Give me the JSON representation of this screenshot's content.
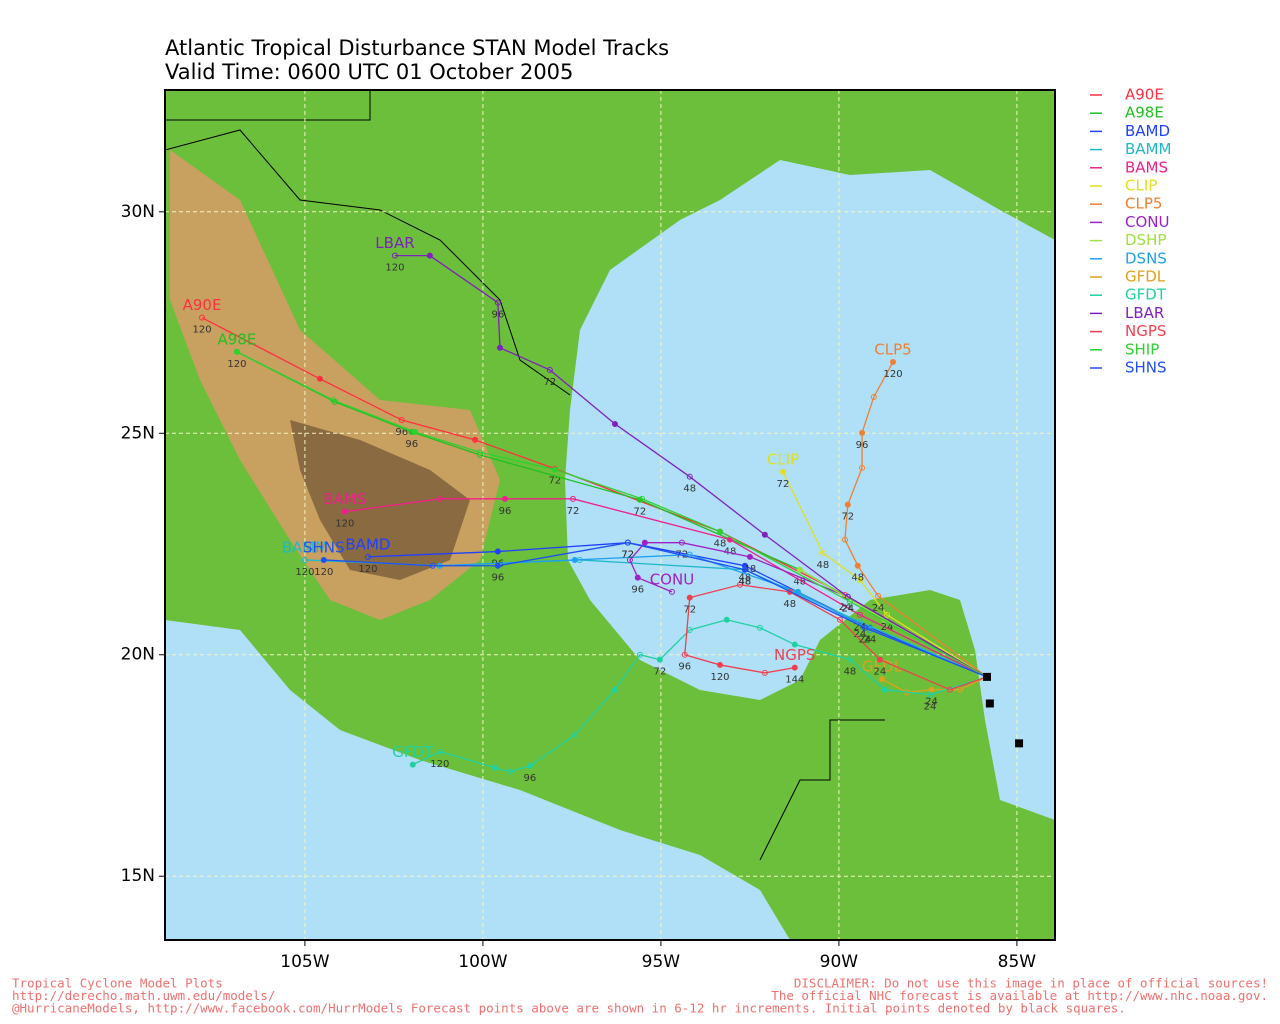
{
  "chart_data": {
    "type": "map_tracks",
    "title": "Atlantic Tropical Disturbance STAN Model Tracks",
    "subtitle": "Valid Time: 0600 UTC 01 October 2005",
    "xlim": [
      -108.93,
      -83.93
    ],
    "ylim": [
      13.56,
      32.75
    ],
    "xticks": [
      {
        "value": -105,
        "label": "105W"
      },
      {
        "value": -100,
        "label": "100W"
      },
      {
        "value": -95,
        "label": "95W"
      },
      {
        "value": -90,
        "label": "90W"
      },
      {
        "value": -85,
        "label": "85W"
      }
    ],
    "yticks": [
      {
        "value": 15,
        "label": "15N"
      },
      {
        "value": 20,
        "label": "20N"
      },
      {
        "value": 25,
        "label": "25N"
      },
      {
        "value": 30,
        "label": "30N"
      }
    ],
    "grid": true,
    "legend": "right",
    "initial_points": {
      "x": [
        -85.84,
        -85.76,
        -84.94
      ],
      "y": [
        19.5,
        18.9,
        18.0
      ]
    },
    "series": [
      {
        "name": "A90E",
        "color": "#ff3040",
        "map_label": true,
        "x": [
          -85.84,
          -89.83,
          -93.34,
          -97.98,
          -100.22,
          -102.28,
          -104.58,
          -107.89
        ],
        "y": [
          19.5,
          21.35,
          22.78,
          24.2,
          24.85,
          25.3,
          26.23,
          27.61
        ],
        "hour_labels": [
          null,
          "24",
          "48",
          "72",
          null,
          "96",
          null,
          "120"
        ]
      },
      {
        "name": "A98E",
        "color": "#20c020",
        "map_label": true,
        "x": [
          -85.84,
          -91.1,
          -95.59,
          -100.08,
          -102.0,
          -104.16,
          -106.91
        ],
        "y": [
          19.5,
          21.92,
          23.5,
          24.51,
          25.03,
          25.71,
          26.84
        ],
        "hour_labels": [
          null,
          "48",
          "72",
          null,
          "96",
          null,
          "120"
        ]
      },
      {
        "name": "BAMD",
        "color": "#2040ff",
        "map_label": true,
        "x": [
          -85.84,
          -89.13,
          -92.64,
          -95.93,
          -99.58,
          -103.23
        ],
        "y": [
          19.5,
          20.61,
          22.01,
          22.53,
          22.33,
          22.21
        ],
        "hour_labels": [
          null,
          "24",
          "48",
          "72",
          "96",
          "120"
        ]
      },
      {
        "name": "BAMM",
        "color": "#20b8c8",
        "map_label": true,
        "x": [
          -85.84,
          -89.41,
          -92.64,
          -97.28,
          -101.21,
          -105.0
        ],
        "y": [
          19.5,
          20.74,
          21.92,
          22.14,
          22.01,
          22.14
        ],
        "hour_labels": [
          null,
          "24",
          "48",
          null,
          null,
          "120"
        ]
      },
      {
        "name": "BAMS",
        "color": "#f0208a",
        "map_label": true,
        "x": [
          -85.84,
          -89.41,
          -93.06,
          -97.47,
          -99.38,
          -101.21,
          -103.88
        ],
        "y": [
          19.5,
          20.9,
          22.6,
          23.52,
          23.52,
          23.52,
          23.23
        ],
        "hour_labels": [
          null,
          "24",
          "48",
          "72",
          "96",
          null,
          "120"
        ]
      },
      {
        "name": "CLIP",
        "color": "#e0e020",
        "map_label": true,
        "x": [
          -85.84,
          -88.65,
          -89.41,
          -90.45,
          -91.57
        ],
        "y": [
          19.5,
          20.9,
          21.69,
          22.3,
          24.13
        ],
        "hour_labels": [
          null,
          "24",
          null,
          "48",
          "72"
        ]
      },
      {
        "name": "CLP5",
        "color": "#f08030",
        "map_label": true,
        "x": [
          -85.84,
          -88.9,
          -89.47,
          -89.83,
          -89.75,
          -89.35,
          -89.35,
          -89.02,
          -88.48
        ],
        "y": [
          19.5,
          21.33,
          22.01,
          22.6,
          23.39,
          24.22,
          25.01,
          25.82,
          26.61
        ],
        "hour_labels": [
          null,
          "24",
          "48",
          null,
          "72",
          null,
          "96",
          null,
          "120"
        ]
      },
      {
        "name": "CONU",
        "color": "#a020c8",
        "map_label": true,
        "x": [
          -85.84,
          -89.75,
          -92.5,
          -94.41,
          -95.45,
          -95.87,
          -95.65,
          -94.69
        ],
        "y": [
          19.5,
          21.31,
          22.21,
          22.53,
          22.53,
          22.14,
          21.74,
          21.42
        ],
        "hour_labels": [
          null,
          "24",
          "48",
          "72",
          null,
          null,
          "96",
          null
        ]
      },
      {
        "name": "DSHP",
        "color": "#a0e040",
        "map_label": false,
        "x": [
          -85.84,
          -88.71,
          -91.1
        ],
        "y": [
          19.5,
          20.79,
          21.92
        ],
        "hour_labels": [
          null,
          null,
          null
        ]
      },
      {
        "name": "DSNS",
        "color": "#20a0f0",
        "map_label": false,
        "x": [
          -85.84,
          -89.13,
          -91.15,
          -94.19,
          -97.42,
          -101.21
        ],
        "y": [
          19.5,
          20.56,
          21.42,
          22.26,
          22.14,
          22.01
        ],
        "hour_labels": [
          null,
          null,
          null,
          null,
          null,
          null
        ]
      },
      {
        "name": "GFDL",
        "color": "#e0a020",
        "map_label": true,
        "x": [
          -85.84,
          -86.6,
          -87.4,
          -88.1,
          -88.79
        ],
        "y": [
          19.5,
          19.21,
          19.21,
          19.15,
          19.45
        ],
        "hour_labels": [
          null,
          null,
          "24",
          null,
          null
        ]
      },
      {
        "name": "GFDT",
        "color": "#20d0a0",
        "map_label": true,
        "x": [
          -85.84,
          -87.44,
          -88.71,
          -89.69,
          -91.24,
          -92.22,
          -93.15,
          -94.19,
          -95.03,
          -95.59,
          -96.29,
          -97.42,
          -98.68,
          -99.24,
          -99.66,
          -101.21,
          -101.97
        ],
        "y": [
          19.5,
          19.1,
          19.21,
          19.89,
          20.23,
          20.61,
          20.79,
          20.56,
          19.89,
          20.0,
          19.21,
          18.19,
          17.49,
          17.36,
          17.45,
          17.81,
          17.52
        ],
        "hour_labels": [
          null,
          "24",
          null,
          "48",
          null,
          null,
          null,
          null,
          "72",
          null,
          null,
          null,
          "96",
          null,
          null,
          "120",
          null
        ]
      },
      {
        "name": "LBAR",
        "color": "#8020c0",
        "map_label": true,
        "x": [
          -85.84,
          -89.75,
          -92.08,
          -94.19,
          -96.29,
          -98.12,
          -99.52,
          -99.58,
          -101.49,
          -102.47
        ],
        "y": [
          19.5,
          21.31,
          22.71,
          24.02,
          25.21,
          26.43,
          26.93,
          27.95,
          29.01,
          29.01
        ],
        "hour_labels": [
          null,
          "24",
          null,
          "48",
          null,
          "72",
          null,
          "96",
          null,
          "120"
        ]
      },
      {
        "name": "NGPS",
        "color": "#f04050",
        "map_label": true,
        "x": [
          -85.84,
          -86.88,
          -88.85,
          -89.97,
          -91.38,
          -92.78,
          -94.19,
          -94.33,
          -93.34,
          -92.08,
          -91.24
        ],
        "y": [
          19.5,
          19.21,
          19.89,
          20.79,
          21.42,
          21.58,
          21.29,
          20.0,
          19.77,
          19.59,
          19.71
        ],
        "hour_labels": [
          null,
          null,
          "24",
          null,
          "48",
          null,
          "72",
          "96",
          "120",
          null,
          "144"
        ]
      },
      {
        "name": "SHIP",
        "color": "#30d030",
        "map_label": false,
        "x": [
          -85.84,
          -89.69,
          -93.34,
          -95.53,
          -97.98,
          -100.08,
          -101.91,
          -104.21,
          -106.91
        ],
        "y": [
          19.5,
          21.2,
          22.78,
          23.52,
          24.18,
          24.57,
          25.03,
          25.75,
          26.84
        ],
        "hour_labels": [
          null,
          null,
          null,
          null,
          null,
          null,
          null,
          null,
          null
        ]
      },
      {
        "name": "SHNS",
        "color": "#2050f0",
        "map_label": true,
        "x": [
          -85.84,
          -89.27,
          -92.64,
          -95.93,
          -99.58,
          -101.41,
          -104.47
        ],
        "y": [
          19.5,
          20.61,
          21.92,
          22.53,
          22.01,
          22.01,
          22.14
        ],
        "hour_labels": [
          null,
          "24",
          "48",
          "72",
          "96",
          null,
          "120"
        ]
      }
    ],
    "footer_left": [
      "Tropical Cyclone Model Plots",
      "http://derecho.math.uwm.edu/models/",
      "@HurricaneModels, http://www.facebook.com/HurrModels  Forecast points above are shown in 6-12 hr increments. Initial points denoted by black squares."
    ],
    "footer_right": [
      "DISCLAIMER: Do not use this image in place of official sources!",
      "The official NHC forecast is available at http://www.nhc.noaa.gov."
    ]
  }
}
